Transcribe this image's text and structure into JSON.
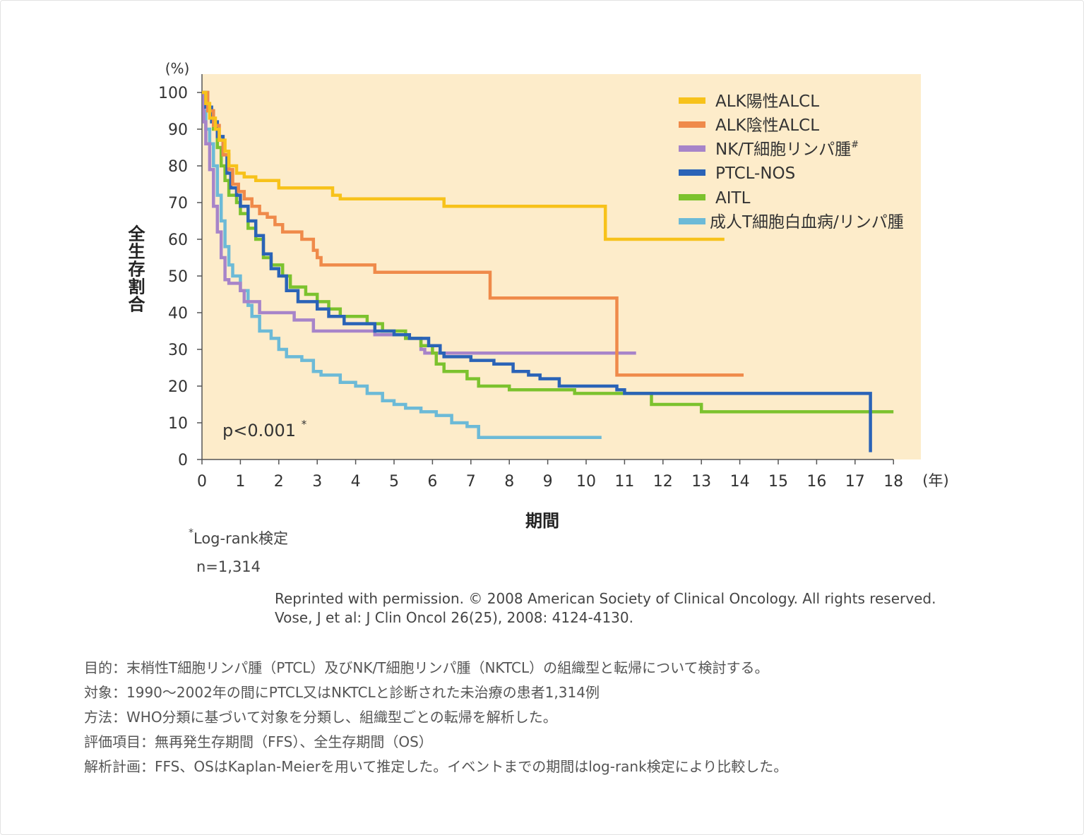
{
  "chart_data": {
    "type": "line",
    "subtype": "kaplan-meier step",
    "title": "",
    "ylabel": "全生存割合",
    "y_unit": "(%)",
    "xlabel": "期間",
    "x_unit": "(年)",
    "xlim": [
      0,
      18
    ],
    "ylim": [
      0,
      100
    ],
    "x_ticks": [
      0,
      1,
      2,
      3,
      4,
      5,
      6,
      7,
      8,
      9,
      10,
      11,
      12,
      13,
      14,
      15,
      16,
      17,
      18
    ],
    "y_ticks": [
      0,
      10,
      20,
      30,
      40,
      50,
      60,
      70,
      80,
      90,
      100
    ],
    "annotation": "p<0.001",
    "annotation_mark": "*",
    "legend_position": "top-right",
    "colors": {
      "plot_background": "#fdecca",
      "axis": "#555555"
    },
    "series": [
      {
        "name": "ALK陽性ALCL",
        "color": "#f7c21b",
        "points": [
          [
            0,
            100
          ],
          [
            0.1,
            97
          ],
          [
            0.2,
            93
          ],
          [
            0.35,
            90
          ],
          [
            0.45,
            87
          ],
          [
            0.6,
            84
          ],
          [
            0.7,
            80
          ],
          [
            0.9,
            78
          ],
          [
            1.1,
            77
          ],
          [
            1.4,
            76
          ],
          [
            2.0,
            74
          ],
          [
            3.4,
            72
          ],
          [
            3.6,
            71
          ],
          [
            6.3,
            69
          ],
          [
            10.5,
            69
          ],
          [
            10.5,
            60
          ],
          [
            13.6,
            60
          ]
        ]
      },
      {
        "name": "ALK陰性ALCL",
        "color": "#ef8a4a",
        "points": [
          [
            0,
            100
          ],
          [
            0.15,
            95
          ],
          [
            0.3,
            91
          ],
          [
            0.45,
            87
          ],
          [
            0.55,
            83
          ],
          [
            0.7,
            79
          ],
          [
            0.8,
            75
          ],
          [
            0.95,
            73
          ],
          [
            1.1,
            71
          ],
          [
            1.3,
            69
          ],
          [
            1.5,
            67
          ],
          [
            1.7,
            66
          ],
          [
            1.9,
            64
          ],
          [
            2.1,
            62
          ],
          [
            2.6,
            60
          ],
          [
            2.9,
            57
          ],
          [
            3.0,
            55
          ],
          [
            3.1,
            53
          ],
          [
            4.5,
            51
          ],
          [
            7.5,
            51
          ],
          [
            7.5,
            44
          ],
          [
            10.8,
            44
          ],
          [
            10.8,
            23
          ],
          [
            14.1,
            23
          ]
        ]
      },
      {
        "name": "NK/T細胞リンパ腫",
        "name_mark": "#",
        "color": "#a784c9",
        "points": [
          [
            0,
            100
          ],
          [
            0.05,
            92
          ],
          [
            0.1,
            86
          ],
          [
            0.2,
            79
          ],
          [
            0.3,
            69
          ],
          [
            0.4,
            62
          ],
          [
            0.5,
            55
          ],
          [
            0.6,
            49
          ],
          [
            0.7,
            48
          ],
          [
            1.0,
            46
          ],
          [
            1.1,
            43
          ],
          [
            1.5,
            40
          ],
          [
            2.4,
            38
          ],
          [
            2.9,
            35
          ],
          [
            4.5,
            34
          ],
          [
            5.3,
            33
          ],
          [
            5.7,
            30
          ],
          [
            5.8,
            29
          ],
          [
            11.3,
            29
          ]
        ]
      },
      {
        "name": "PTCL-NOS",
        "color": "#2a63b7",
        "points": [
          [
            0,
            100
          ],
          [
            0.1,
            96
          ],
          [
            0.25,
            92
          ],
          [
            0.4,
            88
          ],
          [
            0.55,
            83
          ],
          [
            0.65,
            78
          ],
          [
            0.75,
            74
          ],
          [
            0.9,
            72
          ],
          [
            1.0,
            69
          ],
          [
            1.2,
            65
          ],
          [
            1.4,
            61
          ],
          [
            1.6,
            56
          ],
          [
            1.8,
            52
          ],
          [
            2.0,
            50
          ],
          [
            2.2,
            46
          ],
          [
            2.5,
            43
          ],
          [
            3.0,
            41
          ],
          [
            3.3,
            39
          ],
          [
            3.7,
            37
          ],
          [
            4.5,
            35
          ],
          [
            5.0,
            34
          ],
          [
            5.4,
            33
          ],
          [
            5.9,
            31
          ],
          [
            6.2,
            29
          ],
          [
            6.3,
            28
          ],
          [
            7.0,
            27
          ],
          [
            7.6,
            26
          ],
          [
            8.1,
            24
          ],
          [
            8.5,
            23
          ],
          [
            8.8,
            22
          ],
          [
            9.3,
            20
          ],
          [
            10.8,
            19
          ],
          [
            11.0,
            18
          ],
          [
            17.4,
            18
          ],
          [
            17.4,
            2
          ]
        ]
      },
      {
        "name": "AITL",
        "color": "#7cc22e",
        "points": [
          [
            0,
            100
          ],
          [
            0.15,
            95
          ],
          [
            0.3,
            90
          ],
          [
            0.4,
            85
          ],
          [
            0.5,
            80
          ],
          [
            0.6,
            76
          ],
          [
            0.7,
            72
          ],
          [
            0.9,
            70
          ],
          [
            1.0,
            67
          ],
          [
            1.2,
            63
          ],
          [
            1.4,
            60
          ],
          [
            1.6,
            55
          ],
          [
            1.8,
            53
          ],
          [
            2.1,
            50
          ],
          [
            2.3,
            47
          ],
          [
            2.7,
            45
          ],
          [
            3.0,
            43
          ],
          [
            3.3,
            41
          ],
          [
            3.6,
            39
          ],
          [
            4.3,
            37
          ],
          [
            4.7,
            35
          ],
          [
            5.3,
            33
          ],
          [
            5.7,
            31
          ],
          [
            6.0,
            29
          ],
          [
            6.1,
            26
          ],
          [
            6.3,
            24
          ],
          [
            6.9,
            22
          ],
          [
            7.2,
            20
          ],
          [
            7.6,
            20
          ],
          [
            8.0,
            19
          ],
          [
            8.7,
            19
          ],
          [
            9.7,
            18
          ],
          [
            10.2,
            18
          ],
          [
            11.7,
            18
          ],
          [
            11.7,
            15
          ],
          [
            13.0,
            15
          ],
          [
            13.0,
            13
          ],
          [
            17.4,
            13
          ],
          [
            18.0,
            13
          ]
        ]
      },
      {
        "name": "成人T細胞白血病/リンパ腫",
        "color": "#6cbad7",
        "points": [
          [
            0,
            100
          ],
          [
            0.05,
            95
          ],
          [
            0.1,
            90
          ],
          [
            0.2,
            86
          ],
          [
            0.3,
            80
          ],
          [
            0.4,
            72
          ],
          [
            0.5,
            65
          ],
          [
            0.6,
            58
          ],
          [
            0.7,
            53
          ],
          [
            0.8,
            50
          ],
          [
            1.0,
            46
          ],
          [
            1.2,
            42
          ],
          [
            1.3,
            39
          ],
          [
            1.5,
            35
          ],
          [
            1.8,
            33
          ],
          [
            2.0,
            30
          ],
          [
            2.2,
            28
          ],
          [
            2.6,
            27
          ],
          [
            2.9,
            24
          ],
          [
            3.1,
            23
          ],
          [
            3.6,
            21
          ],
          [
            4.0,
            20
          ],
          [
            4.3,
            18
          ],
          [
            4.7,
            16
          ],
          [
            5.0,
            15
          ],
          [
            5.3,
            14
          ],
          [
            5.7,
            13
          ],
          [
            6.1,
            12
          ],
          [
            6.5,
            10
          ],
          [
            6.9,
            9
          ],
          [
            7.2,
            6
          ],
          [
            10.4,
            6
          ]
        ]
      }
    ]
  },
  "notes": {
    "test_mark": "*",
    "test_label": "Log-rank検定",
    "n_label": "n=1,314"
  },
  "credit": {
    "line1": "Reprinted with permission. © 2008 American Society of Clinical Oncology. All rights reserved.",
    "line2": "Vose, J et al: J Clin Oncol 26(25), 2008: 4124-4130."
  },
  "description": {
    "purpose": "目的：末梢性T細胞リンパ腫（PTCL）及びNK/T細胞リンパ腫（NKTCL）の組織型と転帰について検討する。",
    "subjects": "対象：1990〜2002年の間にPTCL又はNKTCLと診断された未治療の患者1,314例",
    "method": "方法：WHO分類に基づいて対象を分類し、組織型ごとの転帰を解析した。",
    "endpoints": "評価項目：無再発生存期間（FFS）、全生存期間（OS）",
    "analysis": "解析計画：FFS、OSはKaplan-Meierを用いて推定した。イベントまでの期間はlog-rank検定により比較した。"
  }
}
